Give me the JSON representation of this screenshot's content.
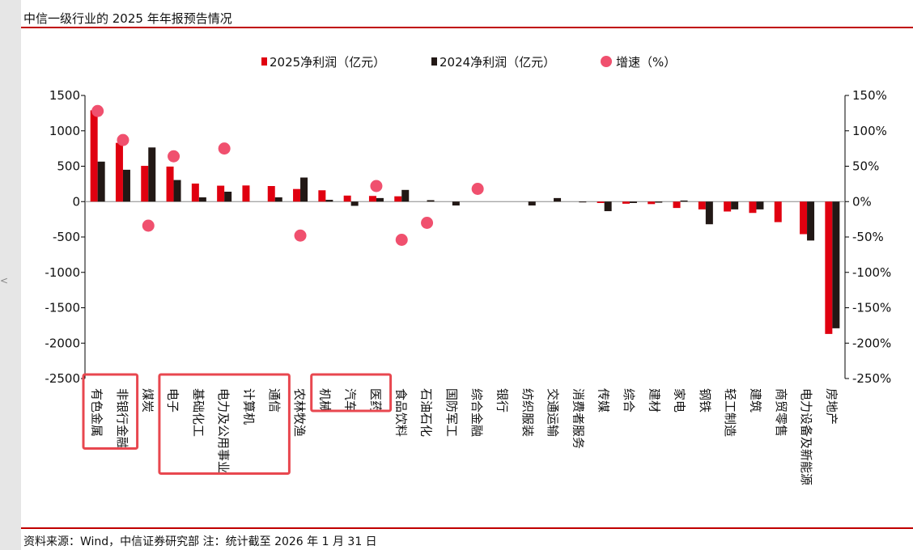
{
  "title": "中信一级行业的 2025 年年报预告情况",
  "source": "资料来源：Wind，中信证券研究部 注：统计截至 2026 年 1 月 31 日",
  "side_mark": "<",
  "colors": {
    "s2025": "#e00010",
    "s2024": "#221815",
    "growth": "#f0506e",
    "box": "#e8474f",
    "rule": "#c00000"
  },
  "chart_data": {
    "type": "bar",
    "categories": [
      "有色金属",
      "非银行金融",
      "煤炭",
      "电子",
      "基础化工",
      "电力及公用事业",
      "计算机",
      "通信",
      "农林牧渔",
      "机械",
      "汽车",
      "医药",
      "食品饮料",
      "石油石化",
      "国防军工",
      "综合金融",
      "银行",
      "纺织服装",
      "交通运输",
      "消费者服务",
      "传媒",
      "综合",
      "建材",
      "家电",
      "钢铁",
      "轻工制造",
      "建筑",
      "商贸零售",
      "电力设备及新能源",
      "房地产"
    ],
    "series": [
      {
        "name": "2025净利润（亿元）",
        "values": [
          1290,
          830,
          505,
          495,
          255,
          225,
          228,
          220,
          178,
          160,
          85,
          80,
          75,
          0,
          0,
          0,
          0,
          0,
          0,
          0,
          -20,
          -30,
          -35,
          -90,
          -110,
          -140,
          -160,
          -290,
          -460,
          -1870
        ]
      },
      {
        "name": "2024净利润（亿元）",
        "values": [
          565,
          450,
          765,
          305,
          60,
          140,
          0,
          60,
          340,
          25,
          -60,
          50,
          165,
          20,
          -55,
          0,
          0,
          -55,
          50,
          -10,
          -135,
          -20,
          -15,
          15,
          -320,
          -110,
          -110,
          0,
          -550,
          -1790
        ]
      },
      {
        "name": "增速（%）",
        "axis": "right",
        "values": [
          128,
          87,
          -34,
          64,
          null,
          75,
          null,
          null,
          -48,
          null,
          null,
          22,
          -54,
          -30,
          null,
          18,
          null,
          null,
          null,
          null,
          null,
          null,
          null,
          null,
          null,
          null,
          null,
          null,
          null,
          null
        ]
      }
    ],
    "y_left": {
      "ylim": [
        -2500,
        1500
      ],
      "ticks": [
        "1500",
        "1000",
        "500",
        "0",
        "-500",
        "-1000",
        "-1500",
        "-2000",
        "-2500"
      ]
    },
    "y_right": {
      "ylim": [
        -250,
        150
      ],
      "ticks": [
        "150%",
        "100%",
        "50%",
        "0%",
        "-50%",
        "-100%",
        "-150%",
        "-200%",
        "-250%"
      ]
    },
    "legend_position": "top",
    "highlight_groups": [
      [
        "有色金属",
        "非银行金融"
      ],
      [
        "电子",
        "基础化工",
        "电力及公用事业",
        "计算机",
        "通信"
      ],
      [
        "机械",
        "汽车",
        "医药"
      ]
    ]
  }
}
